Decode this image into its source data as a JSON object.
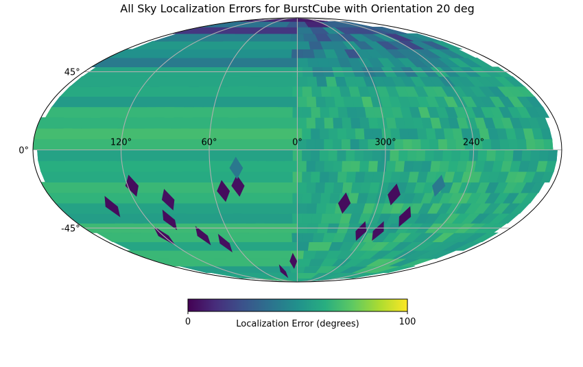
{
  "chart_data": {
    "type": "heatmap",
    "projection": "mollweide",
    "title": "All Sky Localization Errors for BurstCube with Orientation 20 deg",
    "lon_ticks": [
      {
        "value": 120,
        "label": "120°"
      },
      {
        "value": 60,
        "label": "60°"
      },
      {
        "value": 0,
        "label": "0°"
      },
      {
        "value": 300,
        "label": "300°"
      },
      {
        "value": 240,
        "label": "240°"
      }
    ],
    "lat_ticks": [
      {
        "value": 45,
        "label": "45°"
      },
      {
        "value": 0,
        "label": "0°"
      },
      {
        "value": -45,
        "label": "-45°"
      }
    ],
    "grid": true,
    "colormap": "viridis",
    "colorbar": {
      "label": "Localization Error (degrees)",
      "min": 0,
      "max": 100,
      "min_label": "0",
      "max_label": "100",
      "orientation": "horizontal",
      "placement": "bottom"
    },
    "typical_error_range": [
      45,
      70
    ],
    "high_error_regions": [
      {
        "lon": 117,
        "lat": -20,
        "value": 3
      },
      {
        "lon": 140,
        "lat": -32,
        "value": 3
      },
      {
        "lon": 95,
        "lat": -28,
        "value": 4
      },
      {
        "lon": 53,
        "lat": -23,
        "value": 3
      },
      {
        "lon": 42,
        "lat": -20,
        "value": 4
      },
      {
        "lon": 42,
        "lat": -10,
        "value": 40
      },
      {
        "lon": 103,
        "lat": -40,
        "value": 3
      },
      {
        "lon": 85,
        "lat": -50,
        "value": 3
      },
      {
        "lon": 70,
        "lat": -55,
        "value": 4
      },
      {
        "lon": 120,
        "lat": -50,
        "value": 3
      },
      {
        "lon": 5,
        "lat": -68,
        "value": 3
      },
      {
        "lon": 25,
        "lat": -77,
        "value": 3
      },
      {
        "lon": 325,
        "lat": -30,
        "value": 3
      },
      {
        "lon": 290,
        "lat": -25,
        "value": 3
      },
      {
        "lon": 275,
        "lat": -38,
        "value": 3
      },
      {
        "lon": 290,
        "lat": -47,
        "value": 4
      },
      {
        "lon": 305,
        "lat": -47,
        "value": 3
      },
      {
        "lon": 260,
        "lat": -20,
        "value": 40
      }
    ]
  }
}
